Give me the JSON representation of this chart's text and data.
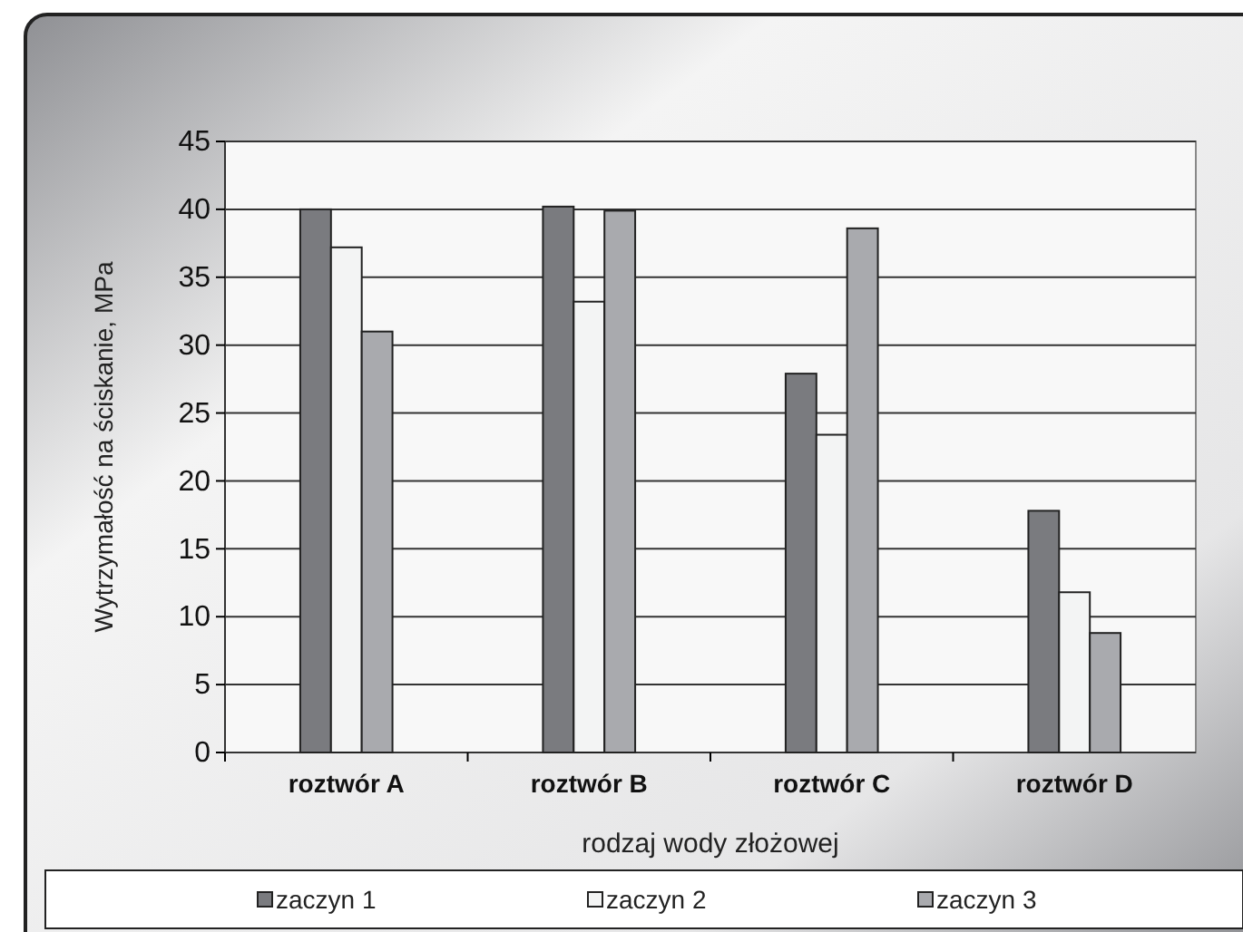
{
  "chart_data": {
    "type": "bar",
    "xlabel": "rodzaj wody złożowej",
    "ylabel": "Wytrzymałość na ściskanie, MPa",
    "categories": [
      "roztwór A",
      "roztwór B",
      "roztwór C",
      "roztwór D"
    ],
    "series": [
      {
        "name": "zaczyn 1",
        "color": "#7a7b7f",
        "values": [
          40,
          40.2,
          27.9,
          17.8
        ]
      },
      {
        "name": "zaczyn 2",
        "color": "#f3f4f4",
        "values": [
          37.2,
          33.2,
          23.4,
          11.8
        ]
      },
      {
        "name": "zaczyn 3",
        "color": "#a9aaae",
        "values": [
          31,
          39.9,
          38.6,
          8.8
        ]
      }
    ],
    "ylim": [
      0,
      45
    ],
    "yticks": [
      0,
      5,
      10,
      15,
      20,
      25,
      30,
      35,
      40,
      45
    ],
    "grid": "y",
    "legend": "bottom"
  }
}
